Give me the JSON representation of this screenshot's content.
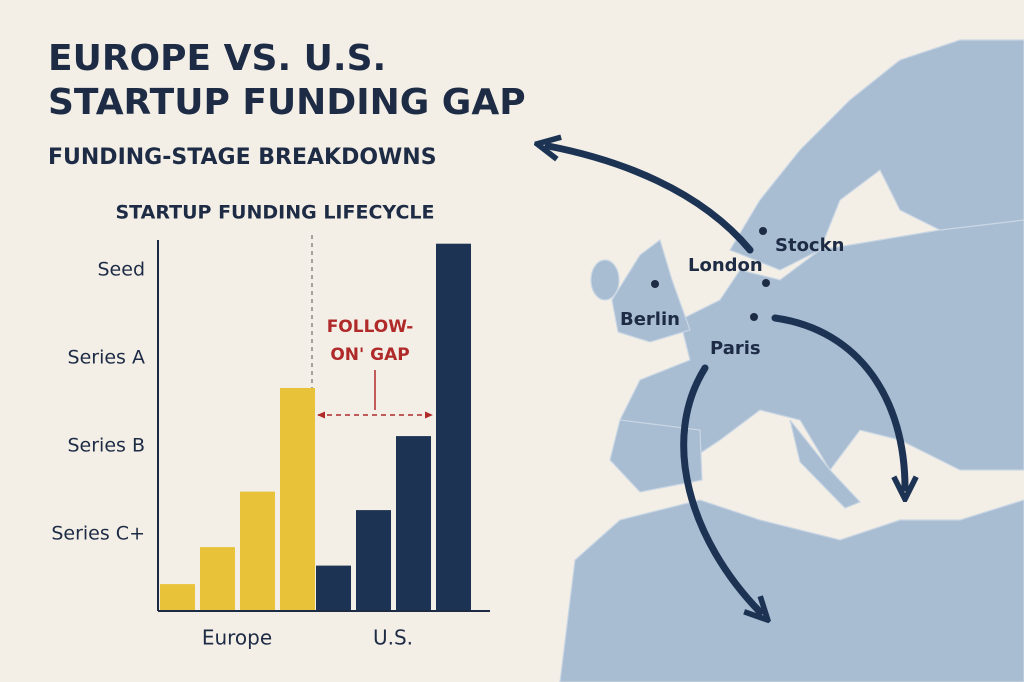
{
  "chart_data": {
    "type": "bar",
    "title": [
      "EUROPE VS. U.S.",
      "STARTUP FUNDING GAP"
    ],
    "subtitle": "FUNDING-STAGE BREAKDOWNS",
    "chart_title": "STARTUP FUNDING LIFECYCLE",
    "stage_labels": [
      "Seed",
      "Series A",
      "Series B",
      "Series C+"
    ],
    "series": [
      {
        "name": "Europe",
        "color": "#e8c33a",
        "values": [
          7,
          17,
          32,
          60
        ]
      },
      {
        "name": "U.S.",
        "color": "#1d3354",
        "values": [
          12,
          27,
          47,
          99
        ]
      }
    ],
    "ylim": [
      0,
      100
    ],
    "annotation": [
      "FOLLOW-",
      "ON' GAP"
    ],
    "map_labels": [
      "London",
      "Stockn",
      "Berlin",
      "Paris"
    ]
  }
}
